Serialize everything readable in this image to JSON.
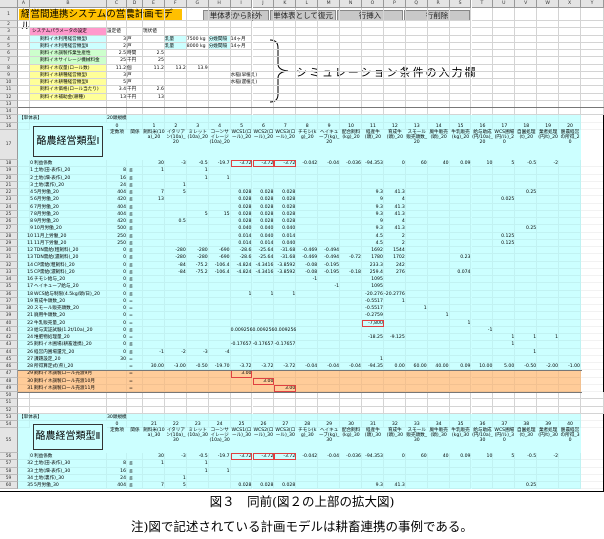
{
  "app": {
    "title": "経営間連携システムの営農計画モデル"
  },
  "toolbar": {
    "buttons": [
      "単体表から除外",
      "単体表として復元",
      "行挿入",
      "行削除"
    ]
  },
  "annotation": "シミュレーション条件の入力欄",
  "colors": {
    "cyan": "#ccffff",
    "orange": "#ffcc99",
    "title": "#ffc000",
    "pink": "#ff99cc",
    "green": "#ccffcc",
    "yellow": "#ffff99",
    "highlight": "#e04040"
  },
  "column_letters": [
    "A",
    "B",
    "C",
    "D",
    "E",
    "F",
    "G",
    "H",
    "I",
    "J",
    "K",
    "L",
    "M",
    "N",
    "O",
    "P",
    "Q",
    "R",
    "S",
    "T",
    "U",
    "V",
    "W",
    "X",
    "Y"
  ],
  "params": {
    "B3": "システムパラメータの設定",
    "C3": "設定値",
    "E3": "現状値",
    "B4": "飼料イネ利用経営類型Ⅰ",
    "C4": "3",
    "D4": "戸",
    "F4": "乳量",
    "G4": "7500 kg",
    "H4": "分娩間隔",
    "I4": "14ヶ月",
    "B5": "飼料イネ利用経営類型Ⅱ",
    "C5": "2",
    "D5": "戸",
    "F5": "乳量",
    "G5": "8000 kg",
    "H5": "分娩間隔",
    "I5": "14ヶ月",
    "B6": "飼料イネ調製作業生産性",
    "C6": "2.5",
    "D6": "時間",
    "E6": "2.5",
    "B7": "飼料イネサイレージ機械料金",
    "C7": "25",
    "D7": "千円",
    "E7": "25",
    "B8": "飼料イネ収量(ロール数)",
    "C8": "11.2",
    "D8": "個",
    "E8": "11.2",
    "F8": "13.2",
    "G8": "13.9",
    "B9": "飼料イネ耕種経営類型Ⅰ",
    "C9": "3",
    "D9": "戸",
    "I9": "水稲(早植え)",
    "B10": "飼料イネ耕種経営類型Ⅱ",
    "C10": "5",
    "D10": "戸",
    "I10": "水稲(遅植え)",
    "B11": "飼料イネ価格(ロール当たり)",
    "C11": "3.4",
    "D11": "千円",
    "E11": "2.6",
    "B12": "飼料イネ補助金(耕種)",
    "C12": "13",
    "D12": "千円",
    "E12": "13"
  },
  "model1": {
    "section": "【単体表】",
    "scale": "20頭規模",
    "title": "酪農経営類型Ⅰ",
    "const_no": "0",
    "const_label": "定数項",
    "rel_label": "関係",
    "headers": [
      {
        "no": "1",
        "label": "飼料米(10a)_20"
      },
      {
        "no": "2",
        "label": "イタリアン(10a)_20"
      },
      {
        "no": "3",
        "label": "ミレット(10a)_20"
      },
      {
        "no": "4",
        "label": "コーンサイレージ(10a)_20"
      },
      {
        "no": "5",
        "label": "WCS1(ロール)_20"
      },
      {
        "no": "6",
        "label": "WCS2(ロール)_20"
      },
      {
        "no": "7",
        "label": "WCS3(ロール)_20"
      },
      {
        "no": "8",
        "label": "チモシ(kg)_20"
      },
      {
        "no": "9",
        "label": "ヘイキューブ(kg)_20"
      },
      {
        "no": "10",
        "label": "配合飼料(kg)_20"
      },
      {
        "no": "11",
        "label": "経産牛(頭)_20"
      },
      {
        "no": "12",
        "label": "育成牛(頭)_20"
      },
      {
        "no": "13",
        "label": "スモール販売頭数_20"
      },
      {
        "no": "14",
        "label": "廃牛販売(頭)_20"
      },
      {
        "no": "15",
        "label": "牛乳販売(kg)_20"
      },
      {
        "no": "16",
        "label": "給与助成(円/10a)_20"
      },
      {
        "no": "17",
        "label": "WCS圃場(円/ル)_20"
      },
      {
        "no": "18",
        "label": "自園処理(t)_20"
      },
      {
        "no": "19",
        "label": "業者処理(円/t)_20"
      },
      {
        "no": "20",
        "label": "酪農経営の所得_20"
      }
    ],
    "rows": [
      {
        "no": "0",
        "name": "利益係数",
        "const": "",
        "rel": "",
        "vals": {
          "1": "30",
          "2": "-3",
          "3": "-0.5",
          "4": "-19.7",
          "5": "-3.72",
          "6": "-3.72",
          "7": "-3.72",
          "8": "-0.042",
          "9": "-0.04",
          "10": "-0.036",
          "11": "-94.353",
          "12": "0",
          "13": "60",
          "14": "40",
          "15": "0.09",
          "16": "10",
          "17": "5",
          "18": "-0.5",
          "19": "-2"
        }
      },
      {
        "no": "1",
        "name": "土地(田-表作)_20",
        "const": "8",
        "rel": "≦",
        "vals": {
          "1": "1",
          "3": "1"
        }
      },
      {
        "no": "2",
        "name": "土地(畑-表作)_20",
        "const": "16",
        "rel": "≦",
        "vals": {
          "3": "1",
          "4": "1"
        }
      },
      {
        "no": "3",
        "name": "土地(裏作)_20",
        "const": "24",
        "rel": "≦",
        "vals": {
          "2": "1"
        }
      },
      {
        "no": "4",
        "name": "5月労働_20",
        "const": "404",
        "rel": "≦",
        "vals": {
          "1": "7",
          "2": "5",
          "5": "0.028",
          "6": "0.028",
          "7": "0.028",
          "11": "9.3",
          "12": "41.3",
          "18": "0.25"
        }
      },
      {
        "no": "5",
        "name": "6月労働_20",
        "const": "420",
        "rel": "≦",
        "vals": {
          "1": "13",
          "5": "0.028",
          "6": "0.028",
          "7": "0.028",
          "11": "9",
          "12": "4",
          "17": "0.025"
        }
      },
      {
        "no": "6",
        "name": "7月労働_20",
        "const": "404",
        "rel": "≦",
        "vals": {
          "5": "0.028",
          "6": "0.028",
          "7": "0.028",
          "11": "9.3",
          "12": "41.3"
        }
      },
      {
        "no": "7",
        "name": "8月労働_20",
        "const": "404",
        "rel": "≦",
        "vals": {
          "3": "5",
          "4": "15",
          "5": "0.028",
          "6": "0.028",
          "7": "0.028",
          "11": "9.3",
          "12": "41.3"
        }
      },
      {
        "no": "8",
        "name": "9月労働_20",
        "const": "420",
        "rel": "≦",
        "vals": {
          "2": "0.5",
          "5": "0.028",
          "6": "0.028",
          "7": "0.028",
          "11": "9",
          "12": "4"
        }
      },
      {
        "no": "9",
        "name": "10月労働_20",
        "const": "500",
        "rel": "≦",
        "vals": {
          "5": "0.040",
          "6": "0.040",
          "7": "0.040",
          "11": "9.3",
          "12": "41.3",
          "18": "0.25"
        }
      },
      {
        "no": "10",
        "name": "11月上労働_20",
        "const": "250",
        "rel": "≦",
        "vals": {
          "5": "0.014",
          "6": "0.040",
          "7": "0.014",
          "11": "4.5",
          "12": "2",
          "17": "0.125"
        }
      },
      {
        "no": "11",
        "name": "11月下労働_20",
        "const": "250",
        "rel": "≦",
        "vals": {
          "5": "0.014",
          "6": "0.014",
          "7": "0.040",
          "11": "4.5",
          "12": "2",
          "17": "0.125"
        }
      },
      {
        "no": "12",
        "name": "TDN需給(粗飼料)_20",
        "const": "0",
        "rel": "≦",
        "vals": {
          "2": "-280",
          "3": "-280",
          "4": "-690",
          "5": "-28.6",
          "6": "-25.64",
          "7": "-31.68",
          "8": "-0.469",
          "9": "-0.494",
          "11": "1692",
          "12": "1544"
        }
      },
      {
        "no": "13",
        "name": "TDN需給(濃飼料)_20",
        "const": "0",
        "rel": "≦",
        "vals": {
          "2": "-280",
          "3": "-280",
          "4": "-690",
          "5": "-28.6",
          "6": "-25.64",
          "7": "-31.68",
          "8": "-0.469",
          "9": "-0.494",
          "10": "-0.72",
          "11": "1780",
          "12": "1702",
          "15": "0.23"
        }
      },
      {
        "no": "14",
        "name": "CP需給(粗飼料)_20",
        "const": "0",
        "rel": "≦",
        "vals": {
          "2": "-84",
          "3": "-75.2",
          "4": "-106.4",
          "5": "-4.824",
          "6": "-4.3416",
          "7": "-3.8592",
          "8": "-0.08",
          "9": "-0.195",
          "11": "233.3",
          "12": "242"
        }
      },
      {
        "no": "15",
        "name": "CP需給(濃飼料)_20",
        "const": "0",
        "rel": "≦",
        "vals": {
          "2": "-84",
          "3": "-75.2",
          "4": "-106.4",
          "5": "-4.824",
          "6": "-4.3416",
          "7": "-3.8592",
          "8": "-0.08",
          "9": "-0.195",
          "10": "-0.18",
          "11": "259.4",
          "12": "276",
          "15": "0.074"
        }
      },
      {
        "no": "16",
        "name": "チモシ給与_20",
        "const": "0",
        "rel": "≦",
        "vals": {
          "8": "-1",
          "11": "1095"
        }
      },
      {
        "no": "17",
        "name": "ヘイキューブ給与_20",
        "const": "0",
        "rel": "≦",
        "vals": {
          "9": "-1",
          "11": "1095"
        }
      },
      {
        "no": "18",
        "name": "WCS給与制限(4.5kg/頭/日)_20",
        "const": "0",
        "rel": "≦",
        "vals": {
          "5": "1",
          "6": "1",
          "7": "1",
          "11": "-20.276",
          "12": "-20.2776"
        }
      },
      {
        "no": "19",
        "name": "育成牛頭数_20",
        "const": "0",
        "rel": "=",
        "vals": {
          "11": "-0.5517",
          "12": "1"
        }
      },
      {
        "no": "20",
        "name": "スモール販売頭数_20",
        "const": "0",
        "rel": "=",
        "vals": {
          "11": "-0.5517",
          "13": "1"
        }
      },
      {
        "no": "21",
        "name": "廃用牛頭数_20",
        "const": "0",
        "rel": "=",
        "vals": {
          "11": "-0.2759",
          "14": "1"
        }
      },
      {
        "no": "22",
        "name": "牛乳販売量_20",
        "const": "0",
        "rel": "=",
        "vals": {
          "11": "-7,800",
          "15": "1"
        }
      },
      {
        "no": "23",
        "name": "給与実証試験(1.2t/10a)_20",
        "const": "0",
        "rel": "≦",
        "vals": {
          "5": "0.009256",
          "6": "0.009256",
          "7": "0.009256",
          "16": "-1"
        }
      },
      {
        "no": "24",
        "name": "堆肥物処理量_20",
        "const": "0",
        "rel": "=",
        "vals": {
          "11": "-18.25",
          "12": "-9.125",
          "17": "1",
          "18": "1",
          "19": "1"
        }
      },
      {
        "no": "25",
        "name": "飼料イネ圃場(耕畜連携)_20",
        "const": "0",
        "rel": "≦",
        "vals": {
          "5": "-0.17657",
          "6": "-0.17657",
          "7": "-0.17657",
          "17": "1"
        }
      },
      {
        "no": "26",
        "name": "経営内圃場還元_20",
        "const": "0",
        "rel": "≦",
        "vals": {
          "1": "-1",
          "2": "-2",
          "3": "-3",
          "4": "-4",
          "18": "1"
        }
      },
      {
        "no": "27",
        "name": "課題設定_20",
        "const": "30",
        "rel": "=",
        "vals": {
          "11": "1"
        }
      },
      {
        "no": "28",
        "name": "所得算定式(県)_20",
        "const": "",
        "rel": "=",
        "vals": {
          "1": "30.00",
          "2": "-3.00",
          "3": "-0.50",
          "4": "-19.70",
          "5": "-3.72",
          "6": "-3.72",
          "7": "-3.72",
          "8": "-0.04",
          "9": "-0.04",
          "10": "-0.04",
          "11": "-94.35",
          "12": "0.00",
          "13": "60.00",
          "14": "40.00",
          "15": "0.09",
          "16": "10.00",
          "17": "5.00",
          "18": "-0.50",
          "19": "-2.00",
          "20": "-1.00"
        }
      },
      {
        "no": "29",
        "name": "飼料イネ調製ロール売渡9月",
        "const": "",
        "rel": "=",
        "vals": {
          "5": "3.00"
        }
      },
      {
        "no": "30",
        "name": "飼料イネ調製ロール売渡10月",
        "const": "",
        "rel": "=",
        "vals": {
          "6": "3.00"
        }
      },
      {
        "no": "31",
        "name": "飼料イネ調製ロール売渡11月",
        "const": "",
        "rel": "=",
        "vals": {
          "7": "3.00"
        }
      }
    ]
  },
  "model2": {
    "section": "【単体表】",
    "scale": "30頭規模",
    "title": "酪農経営類型Ⅱ",
    "const_no": "0",
    "const_label": "定数項",
    "rel_label": "関係",
    "headers": [
      {
        "no": "21",
        "label": "飼料米(10a)_30"
      },
      {
        "no": "22",
        "label": "イタリアン(10a)_30"
      },
      {
        "no": "23",
        "label": "ミレット(10a)_30"
      },
      {
        "no": "24",
        "label": "コーンサイレージ(10a)_30"
      },
      {
        "no": "25",
        "label": "WCS1(ロール)_30"
      },
      {
        "no": "26",
        "label": "WCS2(ロール)_30"
      },
      {
        "no": "27",
        "label": "WCS3(ロール)_30"
      },
      {
        "no": "28",
        "label": "チモシ(kg)_30"
      },
      {
        "no": "29",
        "label": "ヘイキューブ(kg)_30"
      },
      {
        "no": "30",
        "label": "配合飼料(kg)_30"
      },
      {
        "no": "31",
        "label": "経産牛(頭)_30"
      },
      {
        "no": "32",
        "label": "育成牛(頭)_30"
      },
      {
        "no": "33",
        "label": "スモール販売頭数_30"
      },
      {
        "no": "34",
        "label": "廃牛販売(頭)_30"
      },
      {
        "no": "35",
        "label": "牛乳販売(kg)_30"
      },
      {
        "no": "36",
        "label": "給与助成(円/10a)_30"
      },
      {
        "no": "37",
        "label": "WCS圃場(円/ル)_30"
      },
      {
        "no": "38",
        "label": "自園処理(t)_30"
      },
      {
        "no": "39",
        "label": "業者処理(円/t)_30"
      },
      {
        "no": "40",
        "label": "酪農経営の所得_30"
      }
    ],
    "rows": [
      {
        "no": "0",
        "name": "利益係数",
        "const": "",
        "rel": "",
        "vals": {
          "1": "30",
          "2": "-3",
          "3": "-0.5",
          "4": "-19.7",
          "5": "-3.72",
          "6": "-3.72",
          "7": "-3.72",
          "8": "-0.042",
          "9": "-0.04",
          "10": "-0.036",
          "11": "-94.353",
          "12": "0",
          "13": "60",
          "14": "40",
          "15": "0.09",
          "16": "10",
          "17": "5",
          "18": "-0.5",
          "19": "-2"
        }
      },
      {
        "no": "32",
        "name": "土地(田-表作)_30",
        "const": "8",
        "rel": "≦",
        "vals": {
          "1": "1",
          "3": "1"
        }
      },
      {
        "no": "33",
        "name": "土地(畑-表作)_30",
        "const": "16",
        "rel": "≦",
        "vals": {
          "3": "1",
          "4": "1"
        }
      },
      {
        "no": "34",
        "name": "土地(裏作)_30",
        "const": "24",
        "rel": "≦",
        "vals": {
          "2": "1"
        }
      },
      {
        "no": "35",
        "name": "5月労働_30",
        "const": "404",
        "rel": "≦",
        "vals": {
          "1": "7",
          "2": "5",
          "5": "0.028",
          "6": "0.028",
          "7": "0.028",
          "11": "9.3",
          "12": "41.3",
          "18": "0.25"
        }
      }
    ]
  },
  "caption": {
    "figure": "図３　同前(図２の上部の拡大図)",
    "note": "注)図で記述されている計画モデルは耕畜連携の事例である。"
  }
}
